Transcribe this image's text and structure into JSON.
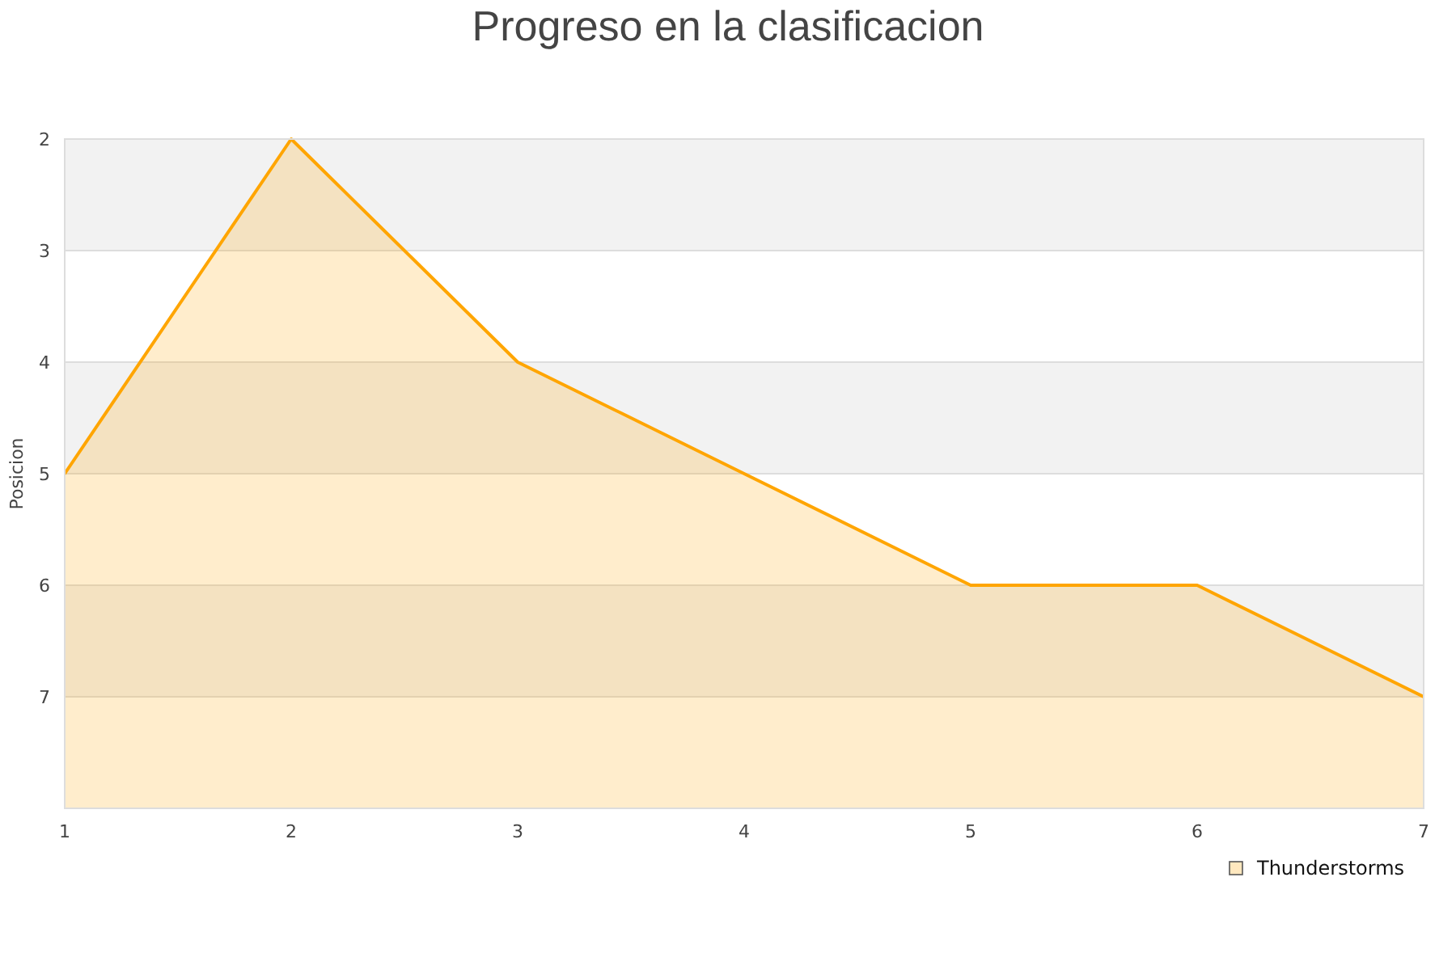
{
  "chart_data": {
    "type": "area",
    "title": "Progreso en la clasificacion",
    "ylabel": "Posicion",
    "x": [
      1,
      2,
      3,
      4,
      5,
      6,
      7
    ],
    "xlim": [
      1,
      7
    ],
    "xticks": [
      1,
      2,
      3,
      4,
      5,
      6,
      7
    ],
    "ylim": [
      8,
      2
    ],
    "yticks": [
      2,
      3,
      4,
      5,
      6,
      7
    ],
    "series": [
      {
        "name": "Thunderstorms",
        "color": "#ffa500",
        "values": [
          5,
          2,
          4,
          5,
          6,
          6,
          7
        ]
      }
    ],
    "grid": "y",
    "legend": "bottom right"
  }
}
